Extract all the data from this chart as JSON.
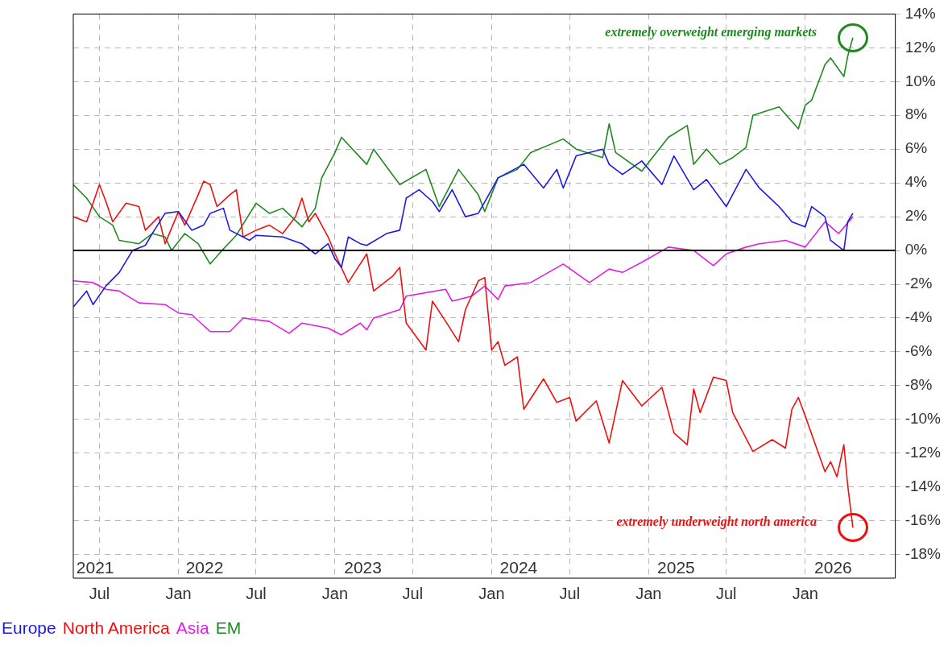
{
  "chart_data": {
    "type": "line",
    "xlim": [
      "2021-05-01",
      "2026-07-30"
    ],
    "xticks": [
      {
        "value": "2021-07-01",
        "label": "Jul"
      },
      {
        "value": "2022-01-01",
        "label": "Jan"
      },
      {
        "value": "2022-07-01",
        "label": "Jul"
      },
      {
        "value": "2023-01-01",
        "label": "Jan"
      },
      {
        "value": "2023-07-01",
        "label": "Jul"
      },
      {
        "value": "2024-01-01",
        "label": "Jan"
      },
      {
        "value": "2024-07-01",
        "label": "Jul"
      },
      {
        "value": "2025-01-01",
        "label": "Jan"
      },
      {
        "value": "2025-07-01",
        "label": "Jul"
      },
      {
        "value": "2026-01-01",
        "label": "Jan"
      }
    ],
    "ylim": [
      -19.4,
      14
    ],
    "yticks": [
      {
        "value": 14,
        "label": "14%"
      },
      {
        "value": 12,
        "label": "12%"
      },
      {
        "value": 10,
        "label": "10%"
      },
      {
        "value": 8,
        "label": "8%"
      },
      {
        "value": 6,
        "label": "6%"
      },
      {
        "value": 4,
        "label": "4%"
      },
      {
        "value": 2,
        "label": "2%"
      },
      {
        "value": 0,
        "label": "0%"
      },
      {
        "value": -2,
        "label": "-2%"
      },
      {
        "value": -4,
        "label": "-4%"
      },
      {
        "value": -6,
        "label": "-6%"
      },
      {
        "value": -8,
        "label": "-8%"
      },
      {
        "value": -10,
        "label": "-10%"
      },
      {
        "value": -12,
        "label": "-12%"
      },
      {
        "value": -14,
        "label": "-14%"
      },
      {
        "value": -16,
        "label": "-16%"
      },
      {
        "value": -18,
        "label": "-18%"
      }
    ],
    "grid": true,
    "legend": "bottom left",
    "ref_lines": [
      {
        "axis": "y",
        "value": 0,
        "color": "#000000"
      }
    ],
    "annotations": [
      {
        "text": "extremely overweight emerging markets",
        "x": "2026-04-22",
        "y": 12.6
      },
      {
        "text": "extremely underweight north america",
        "x": "2026-04-22",
        "y": -16.4
      }
    ],
    "x2lim": [
      "2021-05-01",
      "2026-07-30"
    ],
    "x2ticks": [
      {
        "value": "2021-06-21",
        "label": "2021"
      },
      {
        "value": "2022-03-03",
        "label": "2022"
      },
      {
        "value": "2023-03-07",
        "label": "2023"
      },
      {
        "value": "2024-03-04",
        "label": "2024"
      },
      {
        "value": "2025-03-06",
        "label": "2025"
      },
      {
        "value": "2026-03-07",
        "label": "2026"
      }
    ],
    "series": [
      {
        "name": "Europe",
        "color": "#1c1ce0",
        "x": [
          "2021-05-01",
          "2021-06-01",
          "2021-06-16",
          "2021-07-16",
          "2021-08-16",
          "2021-09-16",
          "2021-10-16",
          "2021-11-01",
          "2021-12-01",
          "2022-01-01",
          "2022-02-01",
          "2022-03-01",
          "2022-03-16",
          "2022-04-16",
          "2022-05-01",
          "2022-06-16",
          "2022-07-01",
          "2022-09-01",
          "2022-10-16",
          "2022-11-16",
          "2022-12-16",
          "2023-01-01",
          "2023-01-16",
          "2023-02-01",
          "2023-03-01",
          "2023-03-16",
          "2023-05-01",
          "2023-06-01",
          "2023-06-16",
          "2023-07-16",
          "2023-08-16",
          "2023-09-01",
          "2023-10-01",
          "2023-11-01",
          "2023-12-01",
          "2024-01-01",
          "2024-01-16",
          "2024-03-16",
          "2024-05-01",
          "2024-06-01",
          "2024-06-16",
          "2024-07-16",
          "2024-09-16",
          "2024-10-01",
          "2024-11-01",
          "2024-12-16",
          "2025-02-01",
          "2025-03-01",
          "2025-04-16",
          "2025-05-16",
          "2025-07-01",
          "2025-08-16",
          "2025-09-16",
          "2025-11-01",
          "2025-12-01",
          "2026-01-01",
          "2026-01-16",
          "2026-02-16",
          "2026-03-01",
          "2026-04-01",
          "2026-04-10",
          "2026-04-22"
        ],
        "values": [
          -3.35,
          -2.4,
          -3.2,
          -2.1,
          -1.3,
          0.0,
          0.3,
          1.0,
          2.2,
          2.3,
          1.2,
          1.5,
          2.2,
          2.5,
          1.2,
          0.6,
          0.9,
          0.8,
          0.4,
          -0.2,
          0.4,
          -0.5,
          -1.0,
          0.8,
          0.4,
          0.3,
          1.0,
          1.2,
          3.1,
          3.6,
          2.9,
          2.3,
          3.6,
          2.0,
          2.2,
          3.6,
          4.3,
          5.1,
          3.7,
          4.8,
          3.7,
          5.6,
          6.0,
          5.1,
          4.5,
          5.3,
          3.9,
          5.6,
          3.6,
          4.2,
          2.6,
          4.8,
          3.7,
          2.6,
          1.7,
          1.4,
          2.6,
          2.0,
          0.6,
          0.0,
          1.7,
          2.2
        ]
      },
      {
        "name": "North America",
        "color": "#ee1111",
        "x": [
          "2021-05-01",
          "2021-06-01",
          "2021-07-01",
          "2021-07-16",
          "2021-08-01",
          "2021-09-01",
          "2021-10-01",
          "2021-10-16",
          "2021-11-16",
          "2021-12-01",
          "2022-01-01",
          "2022-01-16",
          "2022-02-16",
          "2022-03-01",
          "2022-03-16",
          "2022-04-01",
          "2022-05-01",
          "2022-05-16",
          "2022-06-01",
          "2022-07-01",
          "2022-08-01",
          "2022-09-01",
          "2022-10-01",
          "2022-10-16",
          "2022-11-01",
          "2022-11-16",
          "2022-12-16",
          "2023-01-01",
          "2023-02-01",
          "2023-02-16",
          "2023-03-16",
          "2023-04-01",
          "2023-05-01",
          "2023-05-16",
          "2023-06-01",
          "2023-06-16",
          "2023-08-01",
          "2023-08-16",
          "2023-09-16",
          "2023-10-16",
          "2023-11-01",
          "2023-12-01",
          "2023-12-16",
          "2024-01-01",
          "2024-01-16",
          "2024-02-01",
          "2024-03-01",
          "2024-03-16",
          "2024-05-01",
          "2024-06-01",
          "2024-07-01",
          "2024-07-16",
          "2024-09-01",
          "2024-10-01",
          "2024-11-01",
          "2024-12-16",
          "2025-02-01",
          "2025-03-01",
          "2025-04-01",
          "2025-04-16",
          "2025-05-01",
          "2025-06-01",
          "2025-07-01",
          "2025-07-16",
          "2025-09-01",
          "2025-10-16",
          "2025-11-16",
          "2025-12-01",
          "2025-12-16",
          "2026-01-01",
          "2026-02-16",
          "2026-03-01",
          "2026-03-16",
          "2026-04-01",
          "2026-04-10",
          "2026-04-22"
        ],
        "values": [
          2.0,
          1.7,
          3.9,
          2.9,
          1.7,
          2.8,
          2.6,
          1.2,
          2.0,
          0.4,
          2.3,
          1.5,
          3.3,
          4.1,
          3.9,
          2.6,
          3.3,
          3.6,
          0.8,
          1.2,
          1.5,
          1.0,
          2.0,
          3.1,
          1.7,
          2.2,
          0.8,
          -0.2,
          -1.9,
          -1.3,
          -0.2,
          -2.4,
          -1.8,
          -1.5,
          -1.0,
          -4.3,
          -5.9,
          -3.0,
          -4.2,
          -5.4,
          -3.5,
          -1.8,
          -1.6,
          -5.9,
          -5.4,
          -6.8,
          -6.3,
          -9.4,
          -7.6,
          -9.0,
          -8.7,
          -10.1,
          -8.9,
          -11.4,
          -7.7,
          -9.2,
          -8.1,
          -10.8,
          -11.5,
          -8.2,
          -9.6,
          -7.5,
          -7.7,
          -9.6,
          -11.9,
          -11.2,
          -11.7,
          -9.4,
          -8.7,
          -9.8,
          -13.1,
          -12.5,
          -13.4,
          -11.5,
          -13.9,
          -16.4
        ]
      },
      {
        "name": "Asia",
        "color": "#e020e0",
        "x": [
          "2021-05-01",
          "2021-06-16",
          "2021-07-16",
          "2021-08-16",
          "2021-10-01",
          "2021-12-01",
          "2022-01-01",
          "2022-02-01",
          "2022-03-16",
          "2022-05-01",
          "2022-06-01",
          "2022-08-01",
          "2022-09-16",
          "2022-10-16",
          "2022-12-16",
          "2023-01-16",
          "2023-03-01",
          "2023-03-16",
          "2023-04-01",
          "2023-06-01",
          "2023-06-16",
          "2023-09-16",
          "2023-10-01",
          "2023-11-16",
          "2023-12-16",
          "2024-01-16",
          "2024-02-01",
          "2024-04-01",
          "2024-06-16",
          "2024-08-16",
          "2024-10-01",
          "2024-11-01",
          "2024-12-16",
          "2025-02-16",
          "2025-04-16",
          "2025-06-01",
          "2025-07-01",
          "2025-08-16",
          "2025-09-16",
          "2025-11-16",
          "2026-01-01",
          "2026-02-16",
          "2026-03-20",
          "2026-04-22"
        ],
        "values": [
          -1.8,
          -1.9,
          -2.3,
          -2.4,
          -3.1,
          -3.2,
          -3.7,
          -3.8,
          -4.8,
          -4.8,
          -4.0,
          -4.2,
          -4.9,
          -4.3,
          -4.6,
          -5.0,
          -4.3,
          -4.7,
          -4.0,
          -3.5,
          -2.7,
          -2.3,
          -3.0,
          -2.7,
          -2.1,
          -2.9,
          -2.1,
          -1.9,
          -0.8,
          -1.9,
          -1.1,
          -1.3,
          -0.7,
          0.2,
          0.0,
          -0.9,
          -0.2,
          0.2,
          0.4,
          0.6,
          0.2,
          1.7,
          1.0,
          2.0
        ]
      },
      {
        "name": "EM",
        "color": "#1f8a1f",
        "x": [
          "2021-05-01",
          "2021-06-01",
          "2021-07-01",
          "2021-08-01",
          "2021-08-16",
          "2021-10-01",
          "2021-11-01",
          "2021-12-01",
          "2021-12-16",
          "2022-01-16",
          "2022-02-16",
          "2022-03-16",
          "2022-04-16",
          "2022-05-16",
          "2022-07-01",
          "2022-08-01",
          "2022-09-01",
          "2022-10-16",
          "2022-11-16",
          "2022-12-01",
          "2023-01-01",
          "2023-01-16",
          "2023-03-16",
          "2023-04-01",
          "2023-06-01",
          "2023-08-01",
          "2023-09-01",
          "2023-10-16",
          "2023-12-01",
          "2023-12-16",
          "2024-01-16",
          "2024-03-01",
          "2024-04-01",
          "2024-06-16",
          "2024-07-16",
          "2024-09-16",
          "2024-10-01",
          "2024-10-16",
          "2024-12-16",
          "2025-02-16",
          "2025-04-01",
          "2025-04-16",
          "2025-05-16",
          "2025-06-16",
          "2025-07-16",
          "2025-08-16",
          "2025-09-01",
          "2025-11-01",
          "2025-12-16",
          "2026-01-01",
          "2026-01-16",
          "2026-02-16",
          "2026-03-01",
          "2026-04-01",
          "2026-04-10",
          "2026-04-22"
        ],
        "values": [
          3.9,
          3.1,
          2.0,
          1.5,
          0.6,
          0.4,
          1.0,
          0.8,
          0.0,
          1.0,
          0.4,
          -0.8,
          0.1,
          0.9,
          2.8,
          2.2,
          2.5,
          1.4,
          2.5,
          4.3,
          5.8,
          6.7,
          5.1,
          6.0,
          3.9,
          4.8,
          2.6,
          4.8,
          3.3,
          2.3,
          4.3,
          4.8,
          5.8,
          6.6,
          6.0,
          5.5,
          7.5,
          5.8,
          4.7,
          6.7,
          7.4,
          5.1,
          6.0,
          5.1,
          5.5,
          6.1,
          8.0,
          8.5,
          7.2,
          8.6,
          8.9,
          11.0,
          11.4,
          10.3,
          11.5,
          12.6
        ]
      }
    ]
  }
}
